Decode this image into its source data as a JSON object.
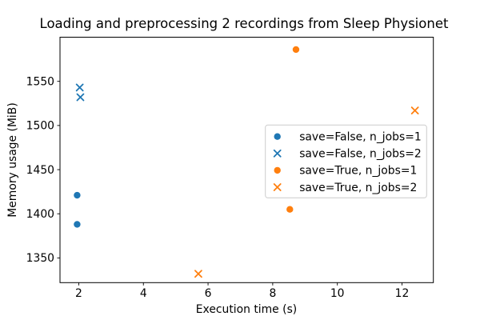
{
  "chart_data": {
    "type": "scatter",
    "title": "Loading and preprocessing 2 recordings from Sleep Physionet",
    "xlabel": "Execution time (s)",
    "ylabel": "Memory usage (MiB)",
    "xlim": [
      1.42,
      12.97
    ],
    "ylim": [
      1322,
      1600
    ],
    "xticks": [
      2,
      4,
      6,
      8,
      10,
      12
    ],
    "yticks": [
      1350,
      1400,
      1450,
      1500,
      1550
    ],
    "grid": false,
    "legend_position": "inside-center-right",
    "frame_color": "#000000",
    "legend_edge_color": "#cccccc",
    "series": [
      {
        "name": "save=False, n_jobs=1",
        "marker": "circle",
        "color": "#1f77b4",
        "points": [
          [
            1.95,
            1421
          ],
          [
            1.95,
            1388
          ]
        ]
      },
      {
        "name": "save=False, n_jobs=2",
        "marker": "x",
        "color": "#1f77b4",
        "points": [
          [
            2.03,
            1543
          ],
          [
            2.05,
            1532
          ]
        ]
      },
      {
        "name": "save=True, n_jobs=1",
        "marker": "circle",
        "color": "#ff7f0e",
        "points": [
          [
            8.72,
            1586
          ],
          [
            8.53,
            1405
          ]
        ]
      },
      {
        "name": "save=True, n_jobs=2",
        "marker": "x",
        "color": "#ff7f0e",
        "points": [
          [
            5.7,
            1332
          ],
          [
            12.4,
            1517
          ]
        ]
      }
    ]
  }
}
